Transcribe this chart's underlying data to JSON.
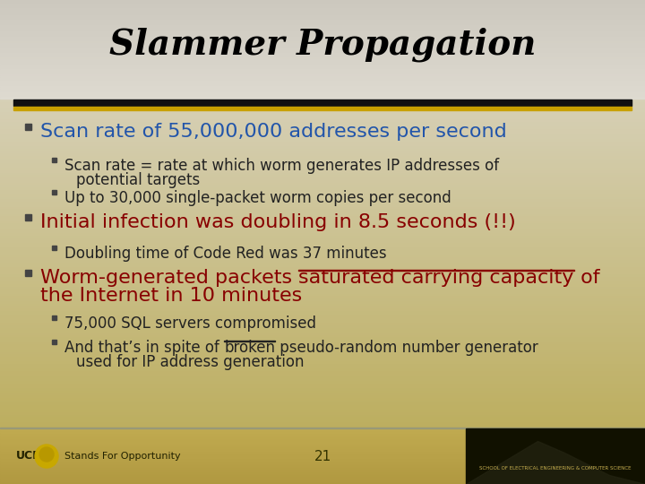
{
  "title": "Slammer Propagation",
  "title_color": "#000000",
  "title_fontsize": 28,
  "title_fontstyle": "italic",
  "title_fontweight": "bold",
  "bullet1_text": "Scan rate of 55,000,000 addresses per second",
  "bullet1_color": "#2255aa",
  "sub1a_line1": "Scan rate = rate at which worm generates IP addresses of",
  "sub1a_line2": "potential targets",
  "sub1b_text": "Up to 30,000 single-packet worm copies per second",
  "bullet2_text": "Initial infection was doubling in 8.5 seconds (!!)",
  "bullet2_color": "#880000",
  "sub2a_text": "Doubling time of Code Red was 37 minutes",
  "bullet3_pre": "Worm-generated packets ",
  "bullet3_underline": "saturated carrying capacity",
  "bullet3_post": " of",
  "bullet3_line2": "the Internet in 10 minutes",
  "bullet3_color": "#880000",
  "sub3a_text": "75,000 SQL servers compromised",
  "sub3b_pre": "And that’s in spite of ",
  "sub3b_underline": "broken",
  "sub3b_post": " pseudo-random number generator",
  "sub3b_line2": "used for IP address generation",
  "normal_color": "#222222",
  "bullet_fontsize": 16,
  "sub_fontsize": 12,
  "page_number": "21",
  "bg_top_color": "#dedad0",
  "bg_bottom_color": "#b8a850",
  "title_bg_color": "#d8d4ca",
  "sep_line1_color": "#111111",
  "sep_line2_color": "#c8a000",
  "footer_bg_color": "#c0aa50"
}
